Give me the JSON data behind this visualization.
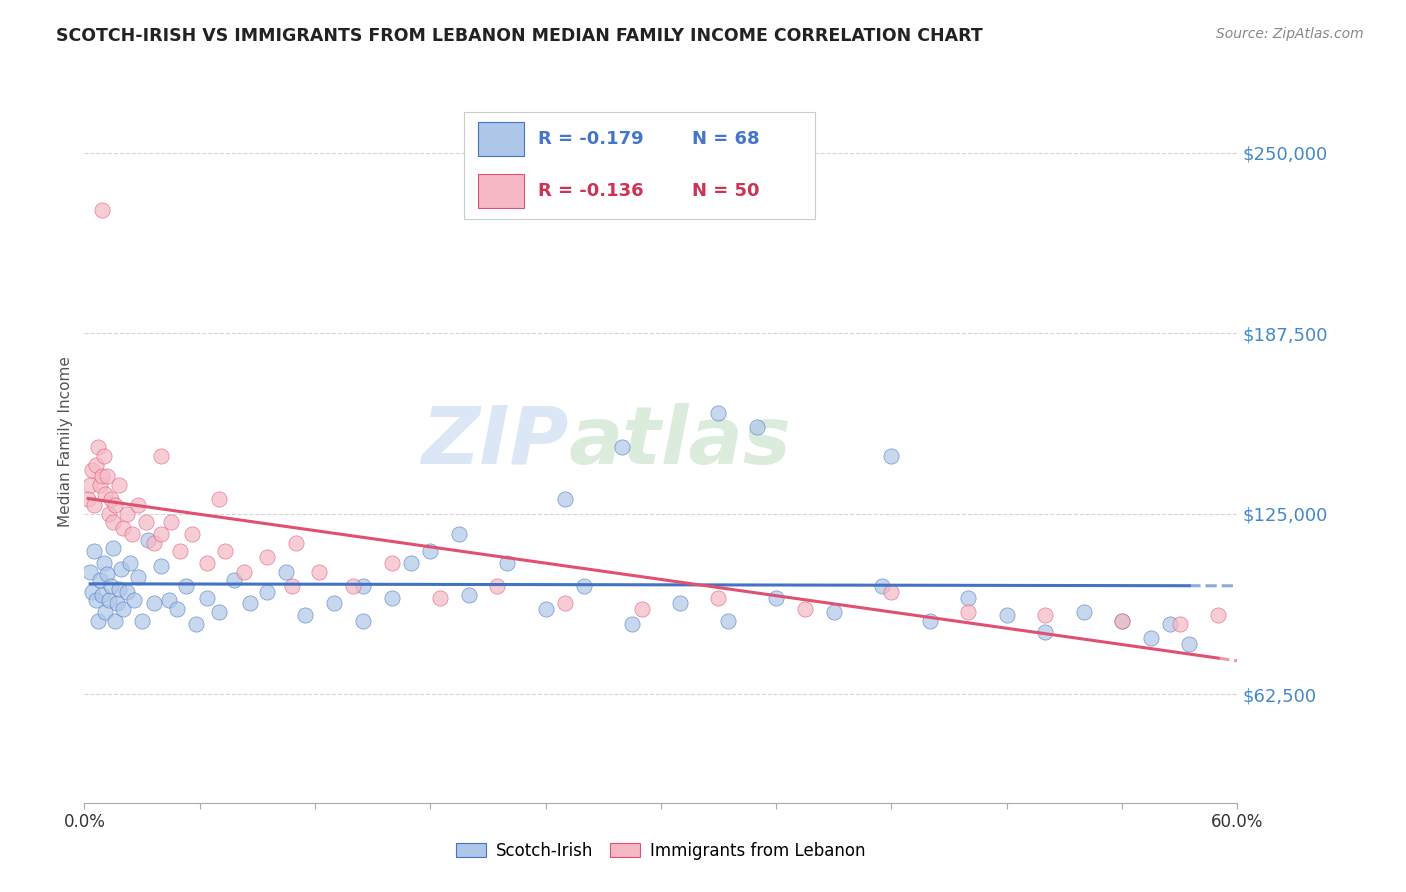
{
  "title": "SCOTCH-IRISH VS IMMIGRANTS FROM LEBANON MEDIAN FAMILY INCOME CORRELATION CHART",
  "source_text": "Source: ZipAtlas.com",
  "ylabel": "Median Family Income",
  "xlim": [
    0.0,
    0.6
  ],
  "ylim": [
    25000,
    275000
  ],
  "yticks": [
    62500,
    125000,
    187500,
    250000
  ],
  "ytick_labels": [
    "$62,500",
    "$125,000",
    "$187,500",
    "$250,000"
  ],
  "xticks": [
    0.0,
    0.06,
    0.12,
    0.18,
    0.24,
    0.3,
    0.36,
    0.42,
    0.48,
    0.54,
    0.6
  ],
  "xtick_labels": [
    "0.0%",
    "",
    "",
    "",
    "",
    "",
    "",
    "",
    "",
    "",
    "60.0%"
  ],
  "legend_label1": "Scotch-Irish",
  "legend_label2": "Immigrants from Lebanon",
  "r1": "-0.179",
  "n1": "68",
  "r2": "-0.136",
  "n2": "50",
  "color1": "#aec6e8",
  "color2": "#f5b8c4",
  "line_color1": "#4472c4",
  "line_color2": "#e05070",
  "scatter1_x": [
    0.003,
    0.004,
    0.005,
    0.006,
    0.007,
    0.008,
    0.009,
    0.01,
    0.011,
    0.012,
    0.013,
    0.014,
    0.015,
    0.016,
    0.017,
    0.018,
    0.019,
    0.02,
    0.022,
    0.024,
    0.026,
    0.028,
    0.03,
    0.033,
    0.036,
    0.04,
    0.044,
    0.048,
    0.053,
    0.058,
    0.064,
    0.07,
    0.078,
    0.086,
    0.095,
    0.105,
    0.115,
    0.13,
    0.145,
    0.16,
    0.18,
    0.2,
    0.22,
    0.24,
    0.26,
    0.285,
    0.31,
    0.335,
    0.36,
    0.39,
    0.415,
    0.44,
    0.46,
    0.48,
    0.5,
    0.52,
    0.54,
    0.555,
    0.565,
    0.575,
    0.33,
    0.35,
    0.28,
    0.42,
    0.25,
    0.195,
    0.17,
    0.145
  ],
  "scatter1_y": [
    105000,
    98000,
    112000,
    95000,
    88000,
    102000,
    97000,
    108000,
    91000,
    104000,
    95000,
    100000,
    113000,
    88000,
    94000,
    99000,
    106000,
    92000,
    98000,
    108000,
    95000,
    103000,
    88000,
    116000,
    94000,
    107000,
    95000,
    92000,
    100000,
    87000,
    96000,
    91000,
    102000,
    94000,
    98000,
    105000,
    90000,
    94000,
    88000,
    96000,
    112000,
    97000,
    108000,
    92000,
    100000,
    87000,
    94000,
    88000,
    96000,
    91000,
    100000,
    88000,
    96000,
    90000,
    84000,
    91000,
    88000,
    82000,
    87000,
    80000,
    160000,
    155000,
    148000,
    145000,
    130000,
    118000,
    108000,
    100000
  ],
  "scatter2_x": [
    0.002,
    0.003,
    0.004,
    0.005,
    0.006,
    0.007,
    0.008,
    0.009,
    0.01,
    0.011,
    0.012,
    0.013,
    0.014,
    0.015,
    0.016,
    0.018,
    0.02,
    0.022,
    0.025,
    0.028,
    0.032,
    0.036,
    0.04,
    0.045,
    0.05,
    0.056,
    0.064,
    0.073,
    0.083,
    0.095,
    0.108,
    0.122,
    0.14,
    0.16,
    0.185,
    0.215,
    0.25,
    0.29,
    0.33,
    0.375,
    0.42,
    0.46,
    0.5,
    0.54,
    0.57,
    0.59,
    0.04,
    0.07,
    0.11,
    0.009
  ],
  "scatter2_y": [
    130000,
    135000,
    140000,
    128000,
    142000,
    148000,
    135000,
    138000,
    145000,
    132000,
    138000,
    125000,
    130000,
    122000,
    128000,
    135000,
    120000,
    125000,
    118000,
    128000,
    122000,
    115000,
    118000,
    122000,
    112000,
    118000,
    108000,
    112000,
    105000,
    110000,
    100000,
    105000,
    100000,
    108000,
    96000,
    100000,
    94000,
    92000,
    96000,
    92000,
    98000,
    91000,
    90000,
    88000,
    87000,
    90000,
    145000,
    130000,
    115000,
    230000
  ],
  "watermark_top": "ZIP",
  "watermark_bot": "atlas",
  "watermark_color_top": "#c8d8ee",
  "watermark_color_bot": "#c8d8c8",
  "background_color": "#ffffff",
  "grid_color": "#cccccc"
}
